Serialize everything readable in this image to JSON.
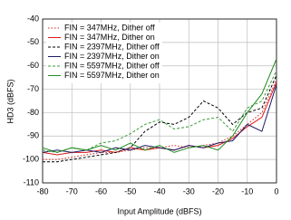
{
  "chart_data": {
    "type": "line",
    "x_label": "Input Amplitude (dBFS)",
    "y_label": "HD3 (dBFS)",
    "x": [
      -80,
      -75,
      -70,
      -65,
      -60,
      -55,
      -50,
      -45,
      -40,
      -35,
      -30,
      -25,
      -20,
      -15,
      -10,
      -5,
      0
    ],
    "xlim": [
      -80,
      0
    ],
    "xticks": [
      -80,
      -70,
      -60,
      -50,
      -40,
      -30,
      -20,
      -10,
      0
    ],
    "ylim": [
      -110,
      -40
    ],
    "yticks": [
      -40,
      -50,
      -60,
      -70,
      -80,
      -90,
      -100,
      -110
    ],
    "grid": true,
    "legend": "upper-left",
    "series": [
      {
        "name": "FIN = 347MHz, Dither off",
        "color": "#d62020",
        "dash": "dotted",
        "values": [
          -100,
          -100,
          -99,
          -98,
          -97,
          -97,
          -96,
          -95,
          -95,
          -94,
          -95,
          -94,
          -93,
          -90,
          -85,
          -80,
          -66
        ]
      },
      {
        "name": "FIN = 347MHz, Dither on",
        "color": "#e01818",
        "dash": "solid",
        "values": [
          -97,
          -98,
          -97,
          -97,
          -96,
          -97,
          -95,
          -96,
          -95,
          -96,
          -94,
          -95,
          -94,
          -91,
          -86,
          -82,
          -67
        ]
      },
      {
        "name": "FIN = 2397MHz, Dither off",
        "color": "#000000",
        "dash": "dashed",
        "values": [
          -101,
          -101,
          -100,
          -99,
          -98,
          -97,
          -95,
          -88,
          -84,
          -85,
          -82,
          -75,
          -78,
          -85,
          -80,
          -78,
          -64
        ]
      },
      {
        "name": "FIN = 2397MHz, Dither on",
        "color": "#1a1a66",
        "dash": "solid",
        "values": [
          -97,
          -96,
          -97,
          -96,
          -97,
          -95,
          -96,
          -94,
          -95,
          -96,
          -94,
          -95,
          -93,
          -92,
          -85,
          -88,
          -68
        ]
      },
      {
        "name": "FIN = 5597MHz, Dither off",
        "color": "#3a9a3a",
        "dash": "dashed",
        "values": [
          -96,
          -97,
          -95,
          -96,
          -93,
          -92,
          -89,
          -85,
          -83,
          -87,
          -86,
          -83,
          -82,
          -88,
          -78,
          -75,
          -62
        ]
      },
      {
        "name": "FIN = 5597MHz, Dither on",
        "color": "#228b22",
        "dash": "solid",
        "values": [
          -95,
          -97,
          -95,
          -96,
          -94,
          -96,
          -93,
          -96,
          -94,
          -97,
          -95,
          -94,
          -96,
          -90,
          -80,
          -72,
          -57
        ]
      }
    ]
  }
}
